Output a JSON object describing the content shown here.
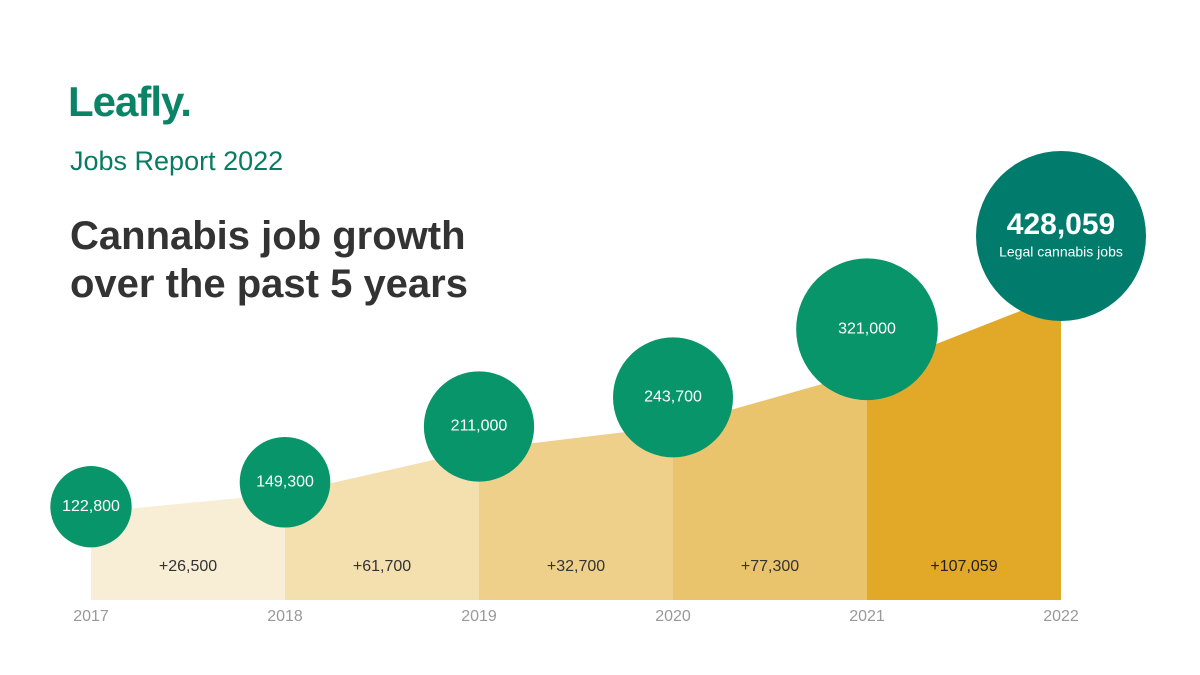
{
  "chart_data": {
    "type": "bubble-area",
    "brand": "Leafly.",
    "report": "Jobs Report 2022",
    "title": "Cannabis job growth over the past 5 years",
    "categories": [
      "2017",
      "2018",
      "2019",
      "2020",
      "2021",
      "2022"
    ],
    "values": [
      122800,
      149300,
      211000,
      243700,
      321000,
      428059
    ],
    "value_labels": [
      "122,800",
      "149,300",
      "211,000",
      "243,700",
      "321,000",
      "428,059"
    ],
    "highlight_note": "Legal cannabis jobs",
    "increments": [
      26500,
      61700,
      32700,
      77300,
      107059
    ],
    "increment_labels": [
      "+26,500",
      "+61,700",
      "+32,700",
      "+77,300",
      "+107,059"
    ],
    "color": "#08956a",
    "highlight_color": "#007b6c",
    "segment_colors": [
      "#f8edd5",
      "#f4dfae",
      "#efd08a",
      "#eac46c",
      "#e6b84f",
      "#e2a827"
    ]
  }
}
